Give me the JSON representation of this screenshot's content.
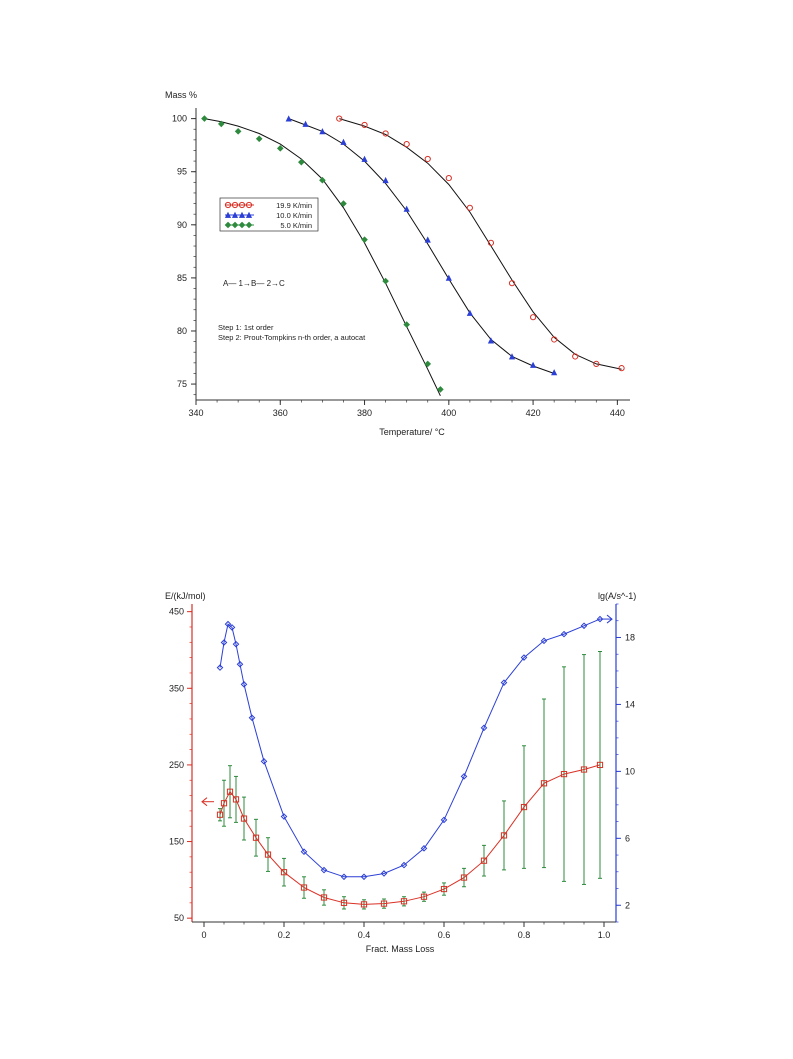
{
  "chart_data": [
    {
      "type": "scatter",
      "title": "",
      "ylabel": "Mass %",
      "xlabel": "Temperature/ °C",
      "xlim": [
        340,
        443
      ],
      "ylim": [
        73.5,
        101
      ],
      "xticks": [
        340,
        360,
        380,
        400,
        420,
        440
      ],
      "yticks": [
        75,
        80,
        85,
        90,
        95,
        100
      ],
      "grid": false,
      "legend_position": "left",
      "annotations": [
        "A— 1→B— 2→C",
        "Step 1: 1st order",
        "Step 2: Prout-Tompkins n-th order, a autocat"
      ],
      "series": [
        {
          "name": "19.9 K/min",
          "color": "#d93025",
          "marker": "circle",
          "x": [
            374,
            380,
            385,
            390,
            395,
            400,
            405,
            410,
            415,
            420,
            425,
            430,
            435,
            441
          ],
          "y": [
            100,
            99.4,
            98.6,
            97.6,
            96.2,
            94.4,
            91.6,
            88.3,
            84.5,
            81.3,
            79.2,
            77.6,
            76.9,
            76.5
          ],
          "fit_y": [
            100,
            99.3,
            98.5,
            97.3,
            95.8,
            93.8,
            91.2,
            88.0,
            84.8,
            81.8,
            79.4,
            77.8,
            76.9,
            76.4
          ]
        },
        {
          "name": "10.0 K/min",
          "color": "#2b3fd6",
          "marker": "triangle",
          "x": [
            362,
            366,
            370,
            375,
            380,
            385,
            390,
            395,
            400,
            405,
            410,
            415,
            420,
            425
          ],
          "y": [
            100,
            99.5,
            98.8,
            97.8,
            96.2,
            94.2,
            91.5,
            88.6,
            85.0,
            81.7,
            79.1,
            77.6,
            76.8,
            76.1
          ],
          "fit_y": [
            100,
            99.4,
            98.8,
            97.6,
            96.0,
            93.9,
            91.3,
            88.2,
            84.9,
            81.7,
            79.2,
            77.6,
            76.7,
            76.0
          ]
        },
        {
          "name": "5.0 K/min",
          "color": "#2e8b3e",
          "marker": "diamond",
          "x": [
            342,
            346,
            350,
            355,
            360,
            365,
            370,
            375,
            380,
            385,
            390,
            395,
            398
          ],
          "y": [
            100,
            99.5,
            98.8,
            98.1,
            97.2,
            95.9,
            94.2,
            92.0,
            88.6,
            84.7,
            80.6,
            76.9,
            74.5
          ],
          "fit_y": [
            100,
            99.7,
            99.3,
            98.6,
            97.6,
            96.2,
            94.3,
            91.6,
            88.3,
            84.5,
            80.4,
            76.4,
            73.9
          ]
        }
      ]
    },
    {
      "type": "line",
      "title": "",
      "xlabel": "Fract. Mass Loss",
      "ylabel": "E/(kJ/mol)",
      "ylabel_right": "lg(A/s^-1)",
      "xlim": [
        -0.03,
        1.03
      ],
      "ylim": [
        45,
        460
      ],
      "ylim_right": [
        1,
        20
      ],
      "xticks": [
        0,
        0.2,
        0.4,
        0.6,
        0.8,
        1.0
      ],
      "yticks": [
        50,
        150,
        250,
        350,
        450
      ],
      "yticks_right": [
        2,
        6,
        10,
        14,
        18
      ],
      "grid": false,
      "series": [
        {
          "name": "",
          "axis": "left",
          "color": "#d93025",
          "marker": "square",
          "x": [
            0.04,
            0.05,
            0.065,
            0.08,
            0.1,
            0.13,
            0.16,
            0.2,
            0.25,
            0.3,
            0.35,
            0.4,
            0.45,
            0.5,
            0.55,
            0.6,
            0.65,
            0.7,
            0.75,
            0.8,
            0.85,
            0.9,
            0.95,
            0.99
          ],
          "y": [
            185,
            200,
            215,
            205,
            180,
            155,
            133,
            110,
            90,
            77,
            70,
            68,
            69,
            72,
            78,
            88,
            103,
            125,
            158,
            195,
            226,
            238,
            244,
            250
          ],
          "err": [
            8,
            30,
            34,
            30,
            28,
            24,
            22,
            18,
            14,
            10,
            8,
            6,
            6,
            6,
            6,
            8,
            12,
            20,
            45,
            80,
            110,
            140,
            150,
            148
          ]
        },
        {
          "name": "",
          "axis": "right",
          "color": "#2b3fd6",
          "marker": "diamond",
          "x": [
            0.04,
            0.05,
            0.06,
            0.07,
            0.08,
            0.09,
            0.1,
            0.12,
            0.15,
            0.2,
            0.25,
            0.3,
            0.35,
            0.4,
            0.45,
            0.5,
            0.55,
            0.6,
            0.65,
            0.7,
            0.75,
            0.8,
            0.85,
            0.9,
            0.95,
            0.99
          ],
          "y": [
            16.2,
            17.7,
            18.8,
            18.6,
            17.6,
            16.4,
            15.2,
            13.2,
            10.6,
            7.3,
            5.2,
            4.1,
            3.7,
            3.7,
            3.9,
            4.4,
            5.4,
            7.1,
            9.7,
            12.6,
            15.3,
            16.8,
            17.8,
            18.2,
            18.7,
            19.1
          ]
        }
      ]
    }
  ]
}
